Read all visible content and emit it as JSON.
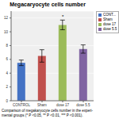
{
  "chart_data": {
    "type": "bar",
    "title": "Megacaryocyte cells number",
    "categories": [
      "CONTROL",
      "Sham",
      "dose 17",
      "dose 5.5"
    ],
    "values": [
      5.5,
      6.5,
      11.0,
      7.5
    ],
    "errors": [
      0.4,
      0.9,
      0.7,
      0.6
    ],
    "colors": [
      "#4472C4",
      "#C0504D",
      "#9BBB59",
      "#8064A2"
    ],
    "legend_labels": [
      "CONT...",
      "Sham",
      "dose 17",
      "dose 5.5"
    ],
    "ylim": [
      0,
      13
    ],
    "yticks": [
      0,
      2,
      4,
      6,
      8,
      10,
      12
    ],
    "grid": true,
    "legend": "right",
    "annotations": [
      {
        "text": "*",
        "x": "dose 17"
      }
    ],
    "caption": "Comparison of megakaryocyte cells number in the experi-\nmental groups (* P <0.05, ** P <0.01, *** P <0.001)."
  }
}
